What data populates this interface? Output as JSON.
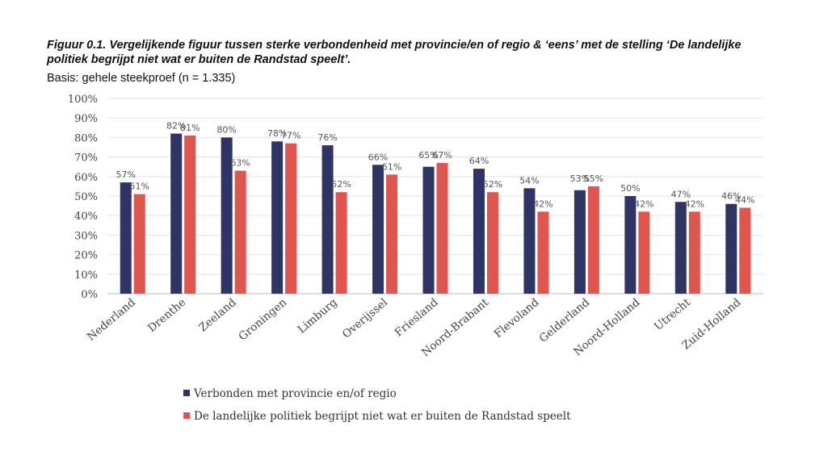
{
  "header": {
    "title": "Figuur 0.1. Vergelijkende figuur tussen sterke verbondenheid met provincie/en of regio & ‘eens’ met de stelling ‘De landelijke politiek begrijpt niet wat er buiten de Randstad speelt’.",
    "subtitle": "Basis: gehele steekproef (n = 1.335)"
  },
  "chart_data": {
    "type": "bar",
    "title": "Figuur 0.1. Vergelijkende figuur tussen sterke verbondenheid met provincie/en of regio & ‘eens’ met de stelling ‘De landelijke politiek begrijpt niet wat er buiten de Randstad speelt’.",
    "subtitle": "Basis: gehele steekproef (n = 1.335)",
    "categories": [
      "Nederland",
      "Drenthe",
      "Zeeland",
      "Groningen",
      "Limburg",
      "Overijssel",
      "Friesland",
      "Noord-Brabant",
      "Flevoland",
      "Gelderland",
      "Noord-Holland",
      "Utrecht",
      "Zuid-Holland"
    ],
    "series": [
      {
        "name": "Verbonden met provincie en/of regio",
        "color": "#2e3463",
        "values": [
          57,
          82,
          80,
          78,
          76,
          66,
          65,
          64,
          54,
          53,
          50,
          47,
          46
        ]
      },
      {
        "name": "De landelijke politiek begrijpt niet wat er buiten de Randstad speelt",
        "color": "#e0564f",
        "values": [
          51,
          81,
          63,
          77,
          52,
          61,
          67,
          52,
          42,
          55,
          42,
          42,
          44
        ]
      }
    ],
    "ylim": [
      0,
      100
    ],
    "yticks": [
      0,
      10,
      20,
      30,
      40,
      50,
      60,
      70,
      80,
      90,
      100
    ],
    "tick_suffix": "%",
    "xlabel": "",
    "ylabel": "",
    "grid": true,
    "legend_position": "bottom"
  }
}
